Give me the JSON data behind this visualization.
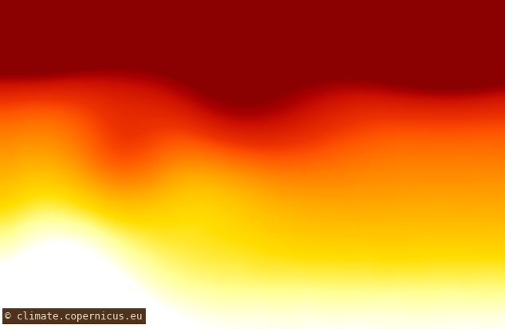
{
  "title": "",
  "watermark": "© climate.copernicus.eu",
  "watermark_bg": "#3d1c02",
  "watermark_color": "#e8e0d0",
  "colormap_colors": [
    "#8b0000",
    "#aa0000",
    "#cc1100",
    "#dd2200",
    "#ee3300",
    "#ff5500",
    "#ff7700",
    "#ff9900",
    "#ffbb00",
    "#ffdd00",
    "#ffff99",
    "#ffffff"
  ],
  "lon_min": -25,
  "lon_max": 65,
  "lat_min": 25,
  "lat_max": 75,
  "figsize": [
    6.34,
    4.13
  ],
  "dpi": 100
}
